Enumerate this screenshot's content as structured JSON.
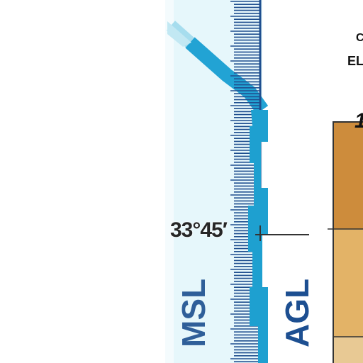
{
  "map": {
    "latitude_label": "33°45′",
    "boundary_labels": {
      "msl": "MSL",
      "agl": "AGL"
    },
    "legend": {
      "heading_line_1": "C",
      "heading_line_2": "EL",
      "top_value": "1"
    },
    "colors": {
      "msl_band": "#e6f7fb",
      "boundary_blue": "#1ea0d0",
      "tick_navy": "#1f4f8f",
      "elevation_dark": "#cd8c3c",
      "elevation_mid": "#e3b367",
      "elevation_light": "#e8c994",
      "grid_line": "#333333",
      "msl_text": "#2f5f99",
      "agl_text": "#1d4f91"
    }
  }
}
